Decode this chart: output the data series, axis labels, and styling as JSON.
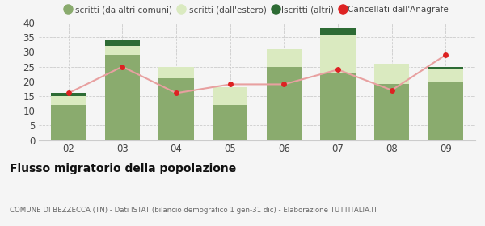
{
  "years": [
    "02",
    "03",
    "04",
    "05",
    "06",
    "07",
    "08",
    "09"
  ],
  "iscritti_altri_comuni": [
    12,
    29,
    21,
    12,
    25,
    23,
    19,
    20
  ],
  "iscritti_estero": [
    3,
    3,
    4,
    6,
    6,
    13,
    7,
    4
  ],
  "iscritti_altri": [
    1,
    2,
    0,
    0,
    0,
    2,
    0,
    1
  ],
  "cancellati": [
    16,
    25,
    16,
    19,
    19,
    24,
    17,
    29
  ],
  "color_altri_comuni": "#8aab6e",
  "color_estero": "#daeac0",
  "color_iscritti_altri": "#2d6b34",
  "color_cancellati": "#dd2222",
  "color_line": "#e8a0a0",
  "ylim": [
    0,
    40
  ],
  "yticks": [
    0,
    5,
    10,
    15,
    20,
    25,
    30,
    35,
    40
  ],
  "title": "Flusso migratorio della popolazione",
  "subtitle": "COMUNE DI BEZZECCA (TN) - Dati ISTAT (bilancio demografico 1 gen-31 dic) - Elaborazione TUTTITALIA.IT",
  "legend_labels": [
    "Iscritti (da altri comuni)",
    "Iscritti (dall'estero)",
    "Iscritti (altri)",
    "Cancellati dall'Anagrafe"
  ],
  "background_color": "#f5f5f5",
  "grid_color": "#cccccc",
  "bar_width": 0.65
}
